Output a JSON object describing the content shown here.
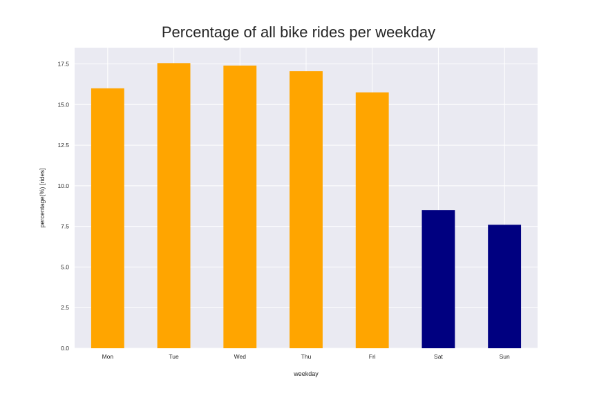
{
  "chart_data": {
    "type": "bar",
    "title": "Percentage of all bike rides per weekday",
    "xlabel": "weekday",
    "ylabel": "percentage(%) [rides]",
    "categories": [
      "Mon",
      "Tue",
      "Wed",
      "Thu",
      "Fri",
      "Sat",
      "Sun"
    ],
    "values": [
      16.0,
      17.55,
      17.4,
      17.05,
      15.75,
      8.5,
      7.6
    ],
    "bar_colors": [
      "#ffa500",
      "#ffa500",
      "#ffa500",
      "#ffa500",
      "#ffa500",
      "#000080",
      "#000080"
    ],
    "ylim": [
      0,
      18.5
    ],
    "yticks": [
      "0.0",
      "2.5",
      "5.0",
      "7.5",
      "10.0",
      "12.5",
      "15.0",
      "17.5"
    ],
    "grid": true,
    "background": "#eaeaf2"
  }
}
